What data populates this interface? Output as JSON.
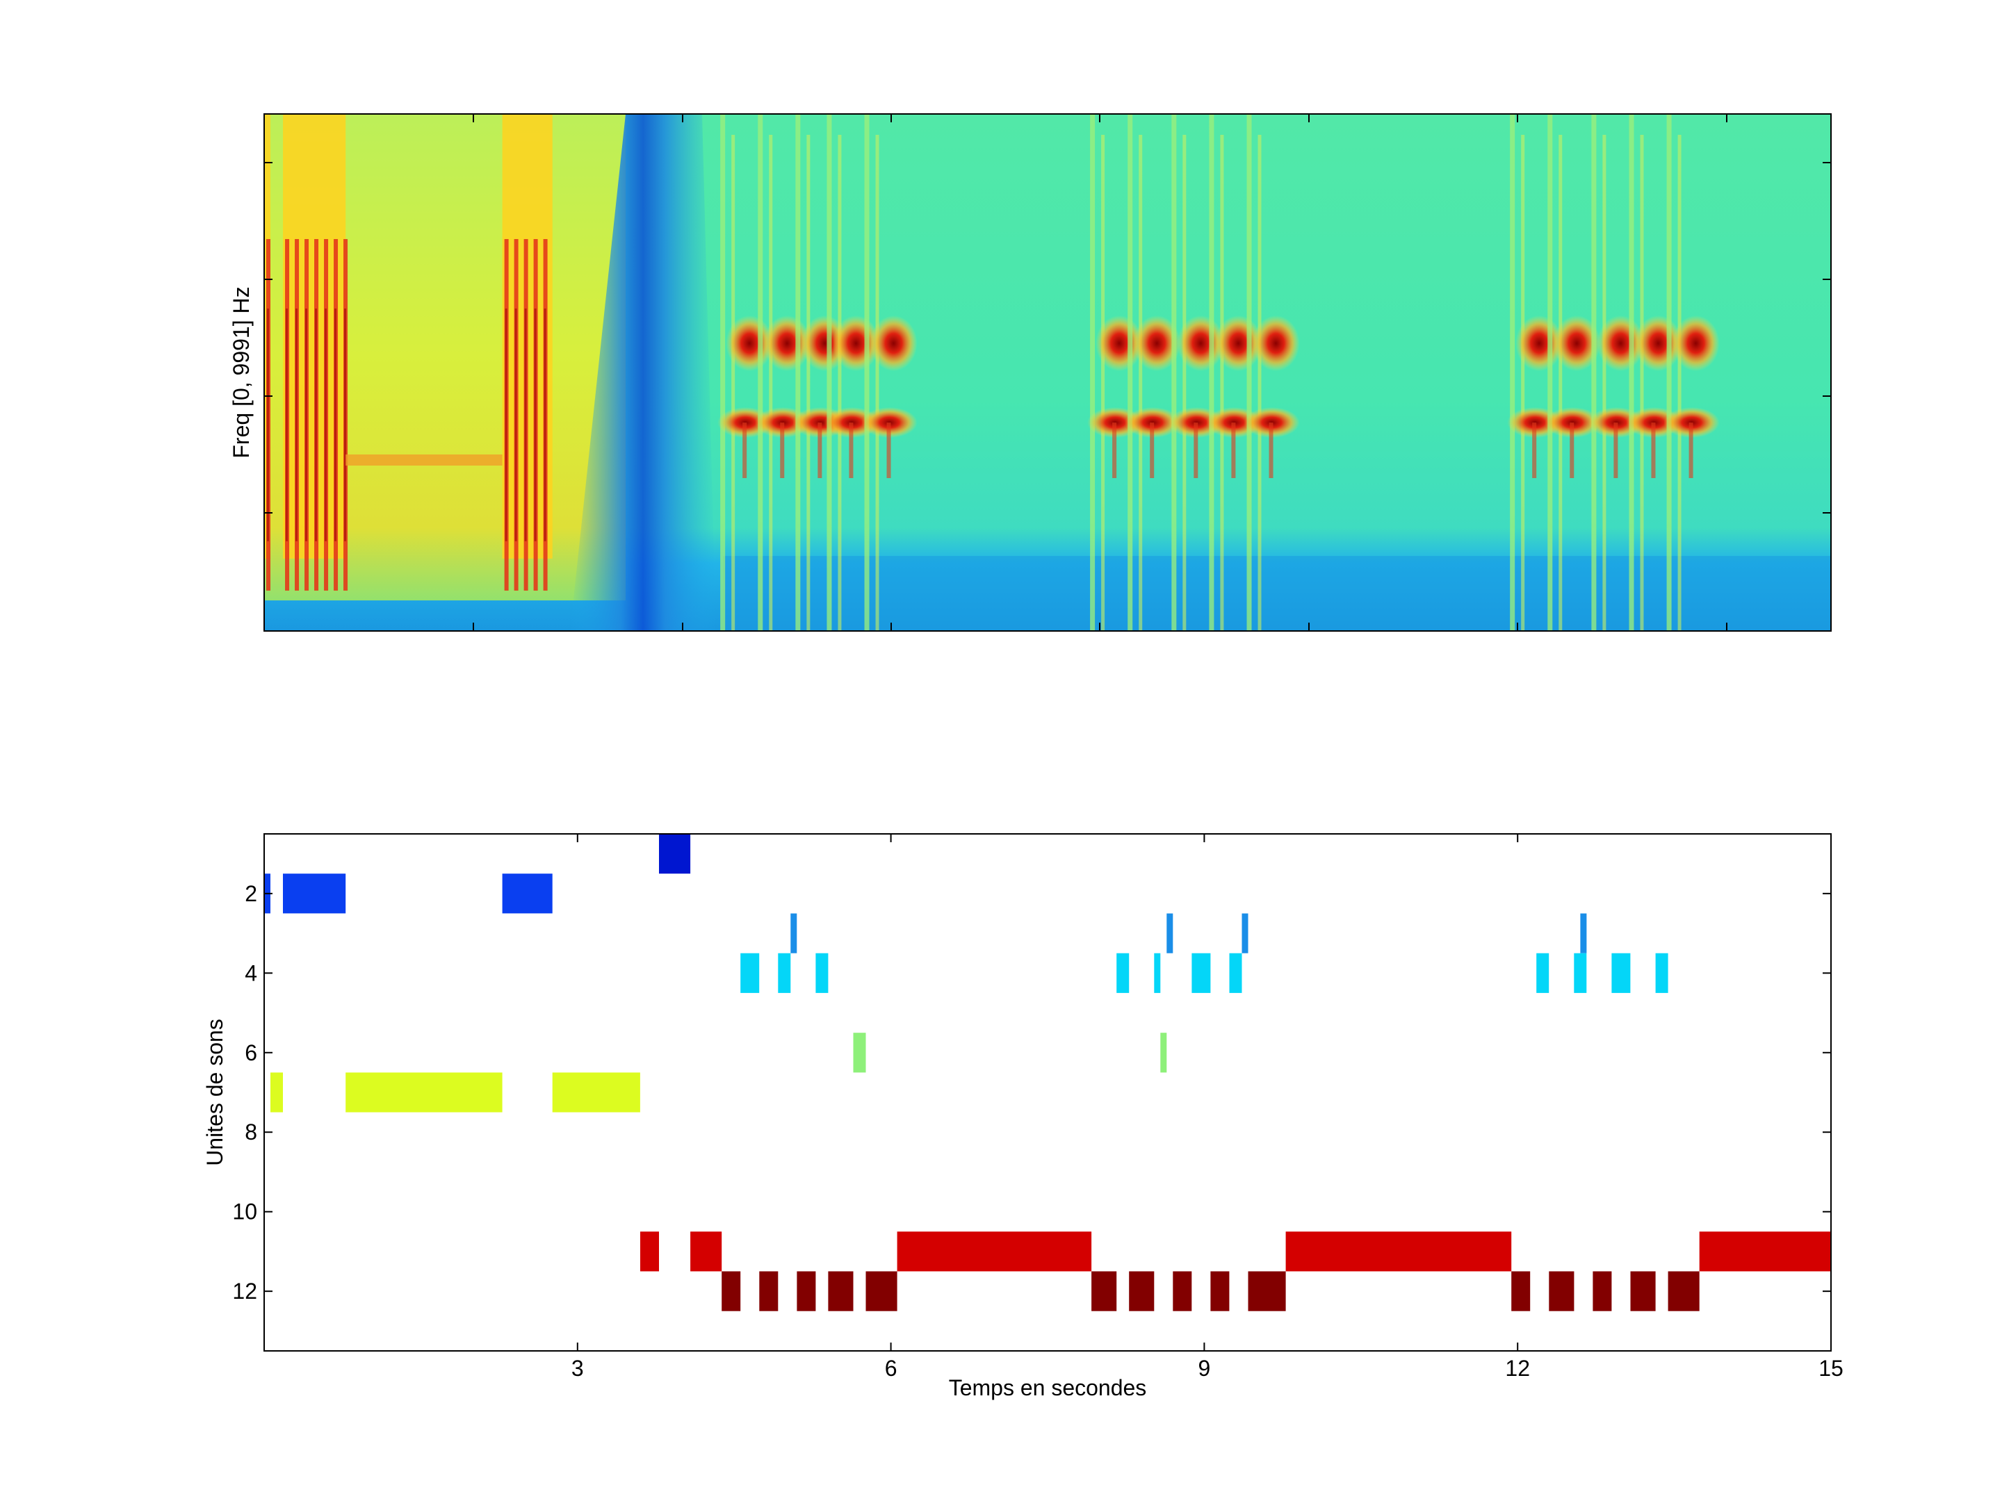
{
  "chart_data": [
    {
      "type": "heatmap",
      "ylabel": "Freq [0, 9991] Hz",
      "x_range": [
        0,
        15
      ],
      "y_range": [
        0,
        9991
      ],
      "colormap": "jet",
      "colors": {
        "background": "#47e6b0",
        "low": "#1ea8e8",
        "deep_low": "#0a4fd6",
        "mid": "#9ff07a",
        "high": "#ffd21e",
        "hot": "#e3381a",
        "peak": "#9a0606"
      }
    },
    {
      "type": "bar",
      "xlabel": "Temps en secondes",
      "ylabel": "Unites de sons",
      "xlim": [
        0,
        15
      ],
      "ylim": [
        0.5,
        13.5
      ],
      "x_ticks": [
        "3",
        "6",
        "9",
        "12",
        "15"
      ],
      "y_ticks": [
        "2",
        "4",
        "6",
        "8",
        "10",
        "12"
      ],
      "y_reversed": true,
      "segments": [
        {
          "unit": 1,
          "start": 3.78,
          "end": 4.08,
          "color": "#0016d0"
        },
        {
          "unit": 2,
          "start": 0.0,
          "end": 0.06,
          "color": "#0a3ff0"
        },
        {
          "unit": 2,
          "start": 0.18,
          "end": 0.78,
          "color": "#0a3ff0"
        },
        {
          "unit": 2,
          "start": 2.28,
          "end": 2.76,
          "color": "#0a3ff0"
        },
        {
          "unit": 3,
          "start": 5.04,
          "end": 5.1,
          "color": "#1a8ee8"
        },
        {
          "unit": 3,
          "start": 8.64,
          "end": 8.7,
          "color": "#1a8ee8"
        },
        {
          "unit": 3,
          "start": 9.36,
          "end": 9.42,
          "color": "#1a8ee8"
        },
        {
          "unit": 3,
          "start": 12.6,
          "end": 12.66,
          "color": "#1a8ee8"
        },
        {
          "unit": 4,
          "start": 4.56,
          "end": 4.74,
          "color": "#04d6f8"
        },
        {
          "unit": 4,
          "start": 4.92,
          "end": 5.04,
          "color": "#04d6f8"
        },
        {
          "unit": 4,
          "start": 5.28,
          "end": 5.4,
          "color": "#04d6f8"
        },
        {
          "unit": 4,
          "start": 8.16,
          "end": 8.28,
          "color": "#04d6f8"
        },
        {
          "unit": 4,
          "start": 8.52,
          "end": 8.58,
          "color": "#04d6f8"
        },
        {
          "unit": 4,
          "start": 8.88,
          "end": 9.06,
          "color": "#04d6f8"
        },
        {
          "unit": 4,
          "start": 9.24,
          "end": 9.36,
          "color": "#04d6f8"
        },
        {
          "unit": 4,
          "start": 12.18,
          "end": 12.3,
          "color": "#04d6f8"
        },
        {
          "unit": 4,
          "start": 12.54,
          "end": 12.66,
          "color": "#04d6f8"
        },
        {
          "unit": 4,
          "start": 12.9,
          "end": 13.08,
          "color": "#04d6f8"
        },
        {
          "unit": 4,
          "start": 13.32,
          "end": 13.44,
          "color": "#04d6f8"
        },
        {
          "unit": 6,
          "start": 5.64,
          "end": 5.76,
          "color": "#8ef07a"
        },
        {
          "unit": 6,
          "start": 8.58,
          "end": 8.64,
          "color": "#8ef07a"
        },
        {
          "unit": 7,
          "start": 0.06,
          "end": 0.18,
          "color": "#dcfc20"
        },
        {
          "unit": 7,
          "start": 0.78,
          "end": 2.28,
          "color": "#dcfc20"
        },
        {
          "unit": 7,
          "start": 2.76,
          "end": 3.6,
          "color": "#dcfc20"
        },
        {
          "unit": 11,
          "start": 3.6,
          "end": 3.78,
          "color": "#d40000"
        },
        {
          "unit": 11,
          "start": 4.08,
          "end": 4.38,
          "color": "#d40000"
        },
        {
          "unit": 11,
          "start": 6.06,
          "end": 7.92,
          "color": "#d40000"
        },
        {
          "unit": 11,
          "start": 9.78,
          "end": 11.94,
          "color": "#d40000"
        },
        {
          "unit": 11,
          "start": 13.74,
          "end": 15.0,
          "color": "#d40000"
        },
        {
          "unit": 12,
          "start": 4.38,
          "end": 4.56,
          "color": "#820000"
        },
        {
          "unit": 12,
          "start": 4.74,
          "end": 4.92,
          "color": "#820000"
        },
        {
          "unit": 12,
          "start": 5.1,
          "end": 5.28,
          "color": "#820000"
        },
        {
          "unit": 12,
          "start": 5.4,
          "end": 5.64,
          "color": "#820000"
        },
        {
          "unit": 12,
          "start": 5.76,
          "end": 6.06,
          "color": "#820000"
        },
        {
          "unit": 12,
          "start": 7.92,
          "end": 8.16,
          "color": "#820000"
        },
        {
          "unit": 12,
          "start": 8.28,
          "end": 8.52,
          "color": "#820000"
        },
        {
          "unit": 12,
          "start": 8.7,
          "end": 8.88,
          "color": "#820000"
        },
        {
          "unit": 12,
          "start": 9.06,
          "end": 9.24,
          "color": "#820000"
        },
        {
          "unit": 12,
          "start": 9.42,
          "end": 9.78,
          "color": "#820000"
        },
        {
          "unit": 12,
          "start": 11.94,
          "end": 12.12,
          "color": "#820000"
        },
        {
          "unit": 12,
          "start": 12.3,
          "end": 12.54,
          "color": "#820000"
        },
        {
          "unit": 12,
          "start": 12.72,
          "end": 12.9,
          "color": "#820000"
        },
        {
          "unit": 12,
          "start": 13.08,
          "end": 13.32,
          "color": "#820000"
        },
        {
          "unit": 12,
          "start": 13.44,
          "end": 13.74,
          "color": "#820000"
        }
      ]
    }
  ]
}
